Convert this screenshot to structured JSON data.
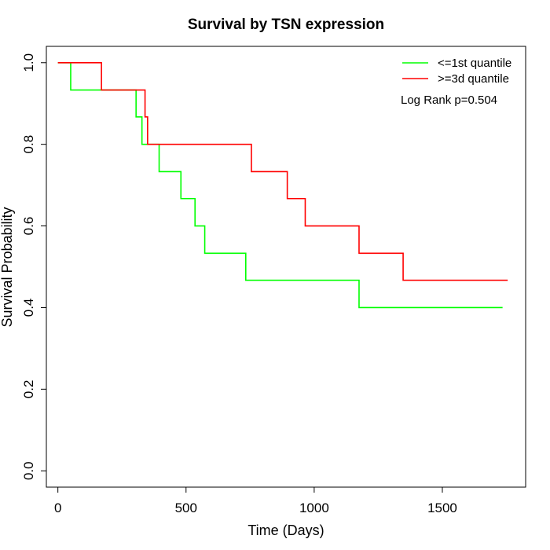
{
  "chart_data": {
    "type": "line",
    "title": "Survival by TSN expression",
    "xlabel": "Time (Days)",
    "ylabel": "Survival Probability",
    "xlim": [
      -45,
      1825
    ],
    "ylim": [
      -0.04,
      1.04
    ],
    "x_ticks": [
      0,
      500,
      1000,
      1500
    ],
    "x_tick_labels": [
      "0",
      "500",
      "1000",
      "1500"
    ],
    "y_ticks": [
      0.0,
      0.2,
      0.4,
      0.6,
      0.8,
      1.0
    ],
    "y_tick_labels": [
      "0.0",
      "0.2",
      "0.4",
      "0.6",
      "0.8",
      "1.0"
    ],
    "step": true,
    "grid": false,
    "legend_position": "top-right",
    "annotation": "Log Rank p=0.504",
    "series": [
      {
        "name": "<=1st quantile",
        "color": "#00ff00",
        "x": [
          0,
          50,
          305,
          328,
          395,
          480,
          535,
          573,
          733,
          1175,
          1735
        ],
        "y": [
          1.0,
          0.933,
          0.867,
          0.8,
          0.733,
          0.667,
          0.6,
          0.533,
          0.467,
          0.4,
          0.4
        ]
      },
      {
        "name": ">=3d quantile",
        "color": "#ff0000",
        "x": [
          0,
          170,
          340,
          350,
          755,
          895,
          965,
          1175,
          1347,
          1755
        ],
        "y": [
          1.0,
          0.933,
          0.867,
          0.8,
          0.733,
          0.667,
          0.6,
          0.533,
          0.467,
          0.467
        ]
      }
    ]
  }
}
